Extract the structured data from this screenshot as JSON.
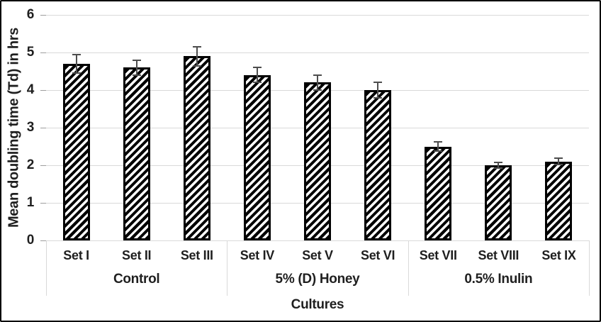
{
  "chart_data": {
    "type": "bar",
    "title": "",
    "xlabel": "Cultures",
    "ylabel": "Mean doubling time (Td) in hrs",
    "ylim": [
      0,
      6
    ],
    "yticks": [
      0,
      1,
      2,
      3,
      4,
      5,
      6
    ],
    "grid": true,
    "legend": false,
    "categories": [
      "Set I",
      "Set II",
      "Set III",
      "Set IV",
      "Set V",
      "Set VI",
      "Set VII",
      "Set VIII",
      "Set IX"
    ],
    "groups": [
      {
        "label": "Control",
        "span": 3
      },
      {
        "label": "5% (D) Honey",
        "span": 3
      },
      {
        "label": "0.5% Inulin",
        "span": 3
      }
    ],
    "series": [
      {
        "name": "Mean doubling time (Td)",
        "values": [
          4.7,
          4.6,
          4.9,
          4.4,
          4.2,
          4.0,
          2.5,
          2.0,
          2.1
        ],
        "errors": [
          0.25,
          0.2,
          0.25,
          0.2,
          0.2,
          0.2,
          0.12,
          0.08,
          0.08
        ]
      }
    ],
    "bar_fill": "diagonal-hatch-forward-slash",
    "bar_border_color": "#000000"
  },
  "style": {
    "background": "#ffffff",
    "frame_border_color": "#000000",
    "gridline_color": "#d9d9d9",
    "tick_mark_color": "#9e9e9e",
    "axis_text_color": "#1f1f1f",
    "error_bar_color": "#4d4d4d",
    "hatch_black": "#000000",
    "hatch_white": "#ffffff"
  }
}
